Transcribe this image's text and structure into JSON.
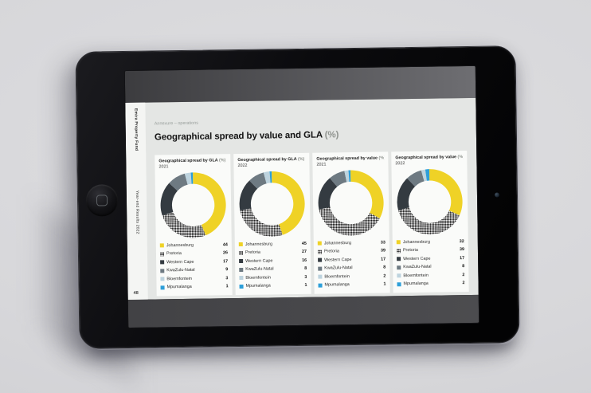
{
  "scene": {
    "wall_color": "#d7d7da"
  },
  "screen": {
    "sidebar": {
      "brand": "Emira Property Fund",
      "edition": "Year-end Results 2022",
      "page_number": "48"
    },
    "breadcrumb": "Annexure – operations",
    "title": "Geographical spread by value and GLA (%)"
  },
  "colors": {
    "johannesburg_yellow": "#efd226",
    "pretoria_hatch_fg": "#161616",
    "pretoria_hatch_bg": "#ffffff",
    "western_cape_dark": "#343b41",
    "kwazulu_natal_gray": "#6e7a82",
    "bloemfontein_light": "#bdd3de",
    "mpumalanga_blue": "#2d9fd9",
    "slide_background": "#e4e6e4",
    "panel_background": "#fafbf9",
    "segment_fills": [
      "#efd226",
      "hatch",
      "#343b41",
      "#6e7a82",
      "#bdd3de",
      "#2d9fd9"
    ]
  },
  "chart_data": [
    {
      "type": "pie",
      "donut": true,
      "title": "Geographical spread by GLA (%)",
      "subtitle": "2021",
      "categories": [
        "Johannesburg",
        "Pretoria",
        "Western Cape",
        "KwaZulu-Natal",
        "Bloemfontein",
        "Mpumalanga"
      ],
      "values": [
        44,
        26,
        17,
        9,
        3,
        1
      ],
      "legend_position": "bottom"
    },
    {
      "type": "pie",
      "donut": true,
      "title": "Geographical spread by GLA (%)",
      "subtitle": "2022",
      "categories": [
        "Johannesburg",
        "Pretoria",
        "Western Cape",
        "KwaZulu-Natal",
        "Bloemfontein",
        "Mpumalanga"
      ],
      "values": [
        45,
        27,
        16,
        8,
        3,
        1
      ],
      "legend_position": "bottom"
    },
    {
      "type": "pie",
      "donut": true,
      "title": "Geographical spread by value (%)",
      "subtitle": "2021",
      "categories": [
        "Johannesburg",
        "Pretoria",
        "Western Cape",
        "KwaZulu-Natal",
        "Bloemfontein",
        "Mpumalanga"
      ],
      "values": [
        33,
        39,
        17,
        8,
        2,
        1
      ],
      "legend_position": "bottom"
    },
    {
      "type": "pie",
      "donut": true,
      "title": "Geographical spread by value (%)",
      "subtitle": "2022",
      "categories": [
        "Johannesburg",
        "Pretoria",
        "Western Cape",
        "KwaZulu-Natal",
        "Bloemfontein",
        "Mpumalanga"
      ],
      "values": [
        32,
        39,
        17,
        8,
        2,
        2
      ],
      "legend_position": "bottom"
    }
  ]
}
